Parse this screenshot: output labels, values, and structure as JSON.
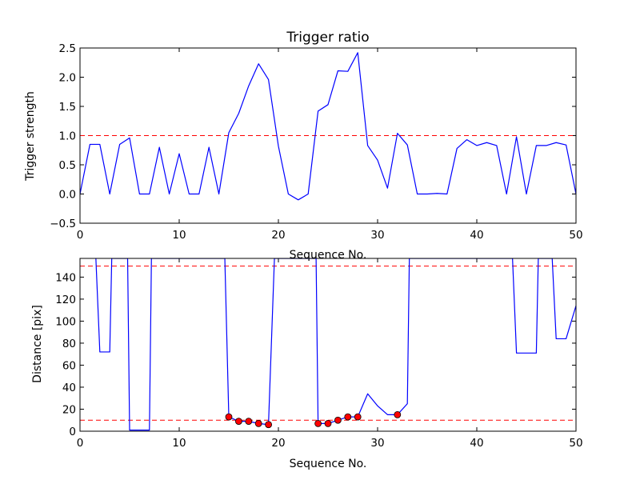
{
  "chart_data": [
    {
      "type": "line",
      "title": "Trigger ratio",
      "xlabel": "Sequence No.",
      "ylabel": "Trigger strength",
      "xlim": [
        0,
        50
      ],
      "ylim": [
        -0.5,
        2.5
      ],
      "xticks": [
        "0",
        "10",
        "20",
        "30",
        "40",
        "50"
      ],
      "yticks": [
        "−0.5",
        "0.0",
        "0.5",
        "1.0",
        "1.5",
        "2.0",
        "2.5"
      ],
      "grid": false,
      "series": [
        {
          "name": "trigger strength",
          "color": "#0000ff",
          "x": [
            0,
            1,
            2,
            3,
            4,
            5,
            6,
            7,
            8,
            9,
            10,
            11,
            12,
            13,
            14,
            15,
            16,
            17,
            18,
            19,
            20,
            21,
            22,
            23,
            24,
            25,
            26,
            27,
            28,
            29,
            30,
            31,
            32,
            33,
            34,
            35,
            36,
            37,
            38,
            39,
            40,
            41,
            42,
            43,
            44,
            45,
            46,
            47,
            48,
            49,
            50
          ],
          "values": [
            0.0,
            0.85,
            0.85,
            0.0,
            0.85,
            0.96,
            0.0,
            0.0,
            0.8,
            0.0,
            0.69,
            0.0,
            0.0,
            0.8,
            0.0,
            1.05,
            1.38,
            1.85,
            2.23,
            1.96,
            0.82,
            0.0,
            -0.1,
            0.0,
            1.42,
            1.53,
            2.11,
            2.1,
            2.42,
            0.83,
            0.58,
            0.1,
            1.04,
            0.84,
            0.0,
            0.0,
            0.01,
            0.0,
            0.78,
            0.93,
            0.83,
            0.88,
            0.83,
            0.0,
            0.98,
            0.0,
            0.83,
            0.83,
            0.88,
            0.84,
            0.0
          ]
        }
      ],
      "hlines": [
        {
          "y": 1.0,
          "color": "#ff0000",
          "style": "dashed"
        }
      ]
    },
    {
      "type": "line",
      "title": "",
      "xlabel": "Sequence No.",
      "ylabel": "Distance [pix]",
      "xlim": [
        0,
        50
      ],
      "ylim": [
        0,
        157
      ],
      "xticks": [
        "0",
        "10",
        "20",
        "30",
        "40",
        "50"
      ],
      "yticks": [
        "0",
        "20",
        "40",
        "60",
        "80",
        "100",
        "120",
        "140"
      ],
      "grid": false,
      "series": [
        {
          "name": "distance",
          "color": "#0000ff",
          "x": [
            1.6,
            2,
            3,
            3.2,
            3.4,
            4.8,
            5,
            6,
            7,
            7.2,
            14.6,
            15,
            16,
            17,
            18,
            19,
            19.6,
            23.8,
            24,
            25,
            26,
            27,
            28,
            29,
            30,
            31,
            32,
            33,
            33.2,
            43.3,
            43.6,
            44,
            45,
            46,
            46.2,
            47.6,
            48,
            49,
            50
          ],
          "values": [
            157,
            72,
            72,
            157,
            157,
            157,
            1,
            1,
            1,
            157,
            157,
            13,
            9,
            9,
            7,
            6,
            157,
            157,
            7,
            7,
            10,
            13,
            13,
            34,
            23,
            15,
            15,
            25,
            157,
            157,
            157,
            71,
            71,
            71,
            157,
            157,
            84,
            84,
            114
          ]
        },
        {
          "name": "trigger points",
          "type": "markers",
          "color": "#ff0000",
          "x": [
            15,
            16,
            17,
            18,
            19,
            24,
            25,
            26,
            27,
            28,
            32
          ],
          "values": [
            13,
            9,
            9,
            7,
            6,
            7,
            7,
            10,
            13,
            13,
            15
          ]
        }
      ],
      "hlines": [
        {
          "y": 150,
          "color": "#ff0000",
          "style": "dashed"
        },
        {
          "y": 10,
          "color": "#ff0000",
          "style": "dashed"
        }
      ]
    }
  ]
}
